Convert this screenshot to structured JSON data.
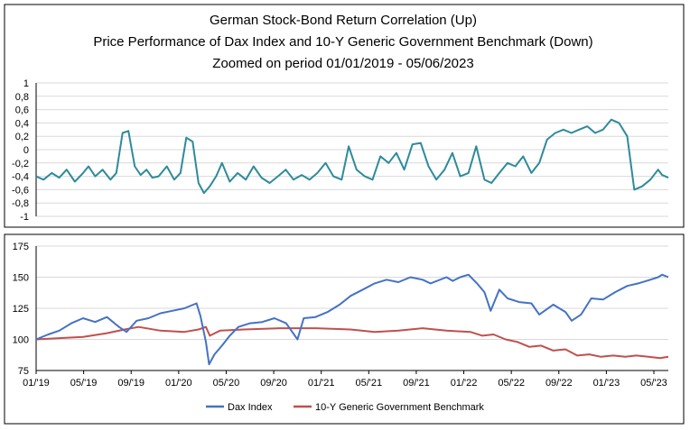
{
  "chart_data": [
    {
      "type": "line",
      "panel": "top",
      "title": [
        "German Stock-Bond Return Correlation (Up)",
        "Price Performance of Dax Index and 10-Y Generic Government Benchmark (Down)",
        "Zoomed on period 01/01/2019 - 05/06/2023"
      ],
      "xlabel": "",
      "ylabel": "",
      "ylim": [
        -1,
        1
      ],
      "yticks": [
        "1",
        "0,8",
        "0,6",
        "0,4",
        "0,2",
        "0",
        "-0,2",
        "-0,4",
        "-0,6",
        "-0,8",
        "-1"
      ],
      "grid": true,
      "series": [
        {
          "color": "#2e8b9a",
          "x": [
            "2019-01-01",
            "2019-01-20",
            "2019-02-10",
            "2019-03-01",
            "2019-03-20",
            "2019-04-10",
            "2019-05-01",
            "2019-05-15",
            "2019-06-01",
            "2019-06-20",
            "2019-07-10",
            "2019-07-25",
            "2019-08-10",
            "2019-08-25",
            "2019-09-10",
            "2019-09-25",
            "2019-10-10",
            "2019-10-25",
            "2019-11-10",
            "2019-12-01",
            "2019-12-20",
            "2020-01-05",
            "2020-01-20",
            "2020-02-05",
            "2020-02-20",
            "2020-03-05",
            "2020-03-20",
            "2020-04-05",
            "2020-04-20",
            "2020-05-10",
            "2020-05-30",
            "2020-06-20",
            "2020-07-10",
            "2020-07-30",
            "2020-08-20",
            "2020-09-10",
            "2020-09-30",
            "2020-10-20",
            "2020-11-10",
            "2020-11-30",
            "2020-12-20",
            "2021-01-10",
            "2021-01-30",
            "2021-02-20",
            "2021-03-10",
            "2021-03-30",
            "2021-04-20",
            "2021-05-10",
            "2021-05-30",
            "2021-06-20",
            "2021-07-10",
            "2021-07-30",
            "2021-08-20",
            "2021-09-10",
            "2021-09-30",
            "2021-10-20",
            "2021-11-10",
            "2021-11-30",
            "2021-12-20",
            "2022-01-10",
            "2022-01-30",
            "2022-02-20",
            "2022-03-10",
            "2022-03-30",
            "2022-04-20",
            "2022-05-10",
            "2022-05-30",
            "2022-06-20",
            "2022-07-10",
            "2022-07-30",
            "2022-08-20",
            "2022-09-10",
            "2022-09-30",
            "2022-10-20",
            "2022-11-10",
            "2022-11-30",
            "2022-12-20",
            "2023-01-10",
            "2023-01-30",
            "2023-02-20",
            "2023-03-10",
            "2023-03-30",
            "2023-04-20",
            "2023-05-10",
            "2023-05-20",
            "2023-06-05"
          ],
          "y": [
            -0.4,
            -0.45,
            -0.35,
            -0.42,
            -0.3,
            -0.48,
            -0.35,
            -0.25,
            -0.4,
            -0.3,
            -0.45,
            -0.35,
            0.25,
            0.28,
            -0.25,
            -0.38,
            -0.3,
            -0.42,
            -0.4,
            -0.25,
            -0.45,
            -0.35,
            0.18,
            0.12,
            -0.5,
            -0.65,
            -0.55,
            -0.4,
            -0.2,
            -0.48,
            -0.35,
            -0.45,
            -0.25,
            -0.42,
            -0.5,
            -0.4,
            -0.3,
            -0.45,
            -0.38,
            -0.45,
            -0.35,
            -0.2,
            -0.4,
            -0.45,
            0.05,
            -0.3,
            -0.4,
            -0.45,
            -0.1,
            -0.2,
            -0.05,
            -0.3,
            0.08,
            0.1,
            -0.25,
            -0.45,
            -0.3,
            -0.05,
            -0.4,
            -0.35,
            0.05,
            -0.45,
            -0.5,
            -0.35,
            -0.2,
            -0.25,
            -0.1,
            -0.35,
            -0.2,
            0.15,
            0.25,
            0.3,
            0.25,
            0.3,
            0.35,
            0.25,
            0.3,
            0.45,
            0.4,
            0.2,
            -0.6,
            -0.55,
            -0.45,
            -0.3,
            -0.38,
            -0.42
          ]
        }
      ]
    },
    {
      "type": "line",
      "panel": "bottom",
      "xlabel": "",
      "ylabel": "",
      "ylim": [
        75,
        175
      ],
      "yticks": [
        "75",
        "100",
        "125",
        "150",
        "175"
      ],
      "xticks": [
        "01/'19",
        "05/'19",
        "09/'19",
        "01/'20",
        "05/'20",
        "09/'20",
        "01/'21",
        "05/'21",
        "09/'21",
        "01/'22",
        "05/'22",
        "09/'22",
        "01/'23",
        "05/'23"
      ],
      "grid": true,
      "legend_position": "bottom",
      "series": [
        {
          "name": "Dax Index",
          "color": "#4472c4",
          "x": [
            "2019-01-01",
            "2019-02-01",
            "2019-03-01",
            "2019-04-01",
            "2019-05-01",
            "2019-06-01",
            "2019-07-01",
            "2019-08-01",
            "2019-08-20",
            "2019-09-15",
            "2019-10-15",
            "2019-11-15",
            "2019-12-15",
            "2020-01-15",
            "2020-02-15",
            "2020-02-25",
            "2020-03-10",
            "2020-03-18",
            "2020-04-01",
            "2020-04-20",
            "2020-05-10",
            "2020-06-01",
            "2020-07-01",
            "2020-08-01",
            "2020-09-01",
            "2020-10-01",
            "2020-10-30",
            "2020-11-15",
            "2020-12-15",
            "2021-01-15",
            "2021-02-15",
            "2021-03-15",
            "2021-04-15",
            "2021-05-15",
            "2021-06-15",
            "2021-07-15",
            "2021-08-15",
            "2021-09-15",
            "2021-10-05",
            "2021-11-15",
            "2021-12-01",
            "2021-12-20",
            "2022-01-10",
            "2022-02-01",
            "2022-02-20",
            "2022-03-08",
            "2022-03-30",
            "2022-04-20",
            "2022-05-20",
            "2022-06-20",
            "2022-07-10",
            "2022-08-15",
            "2022-09-15",
            "2022-10-01",
            "2022-10-25",
            "2022-11-20",
            "2022-12-20",
            "2023-01-20",
            "2023-02-20",
            "2023-03-20",
            "2023-04-20",
            "2023-05-10",
            "2023-05-20",
            "2023-06-05"
          ],
          "y": [
            100,
            104,
            107,
            113,
            117,
            114,
            118,
            110,
            106,
            115,
            117,
            121,
            123,
            125,
            129,
            119,
            98,
            80,
            88,
            95,
            103,
            110,
            113,
            114,
            117,
            113,
            100,
            117,
            118,
            122,
            128,
            135,
            140,
            145,
            148,
            146,
            150,
            148,
            145,
            150,
            147,
            150,
            152,
            145,
            138,
            123,
            140,
            133,
            130,
            129,
            120,
            128,
            122,
            115,
            120,
            133,
            132,
            138,
            143,
            145,
            148,
            150,
            152,
            150
          ]
        },
        {
          "name": "10-Y Generic Government Benchmark",
          "color": "#c0504d",
          "x": [
            "2019-01-01",
            "2019-03-01",
            "2019-05-01",
            "2019-07-01",
            "2019-08-15",
            "2019-09-20",
            "2019-11-15",
            "2020-01-15",
            "2020-02-20",
            "2020-03-10",
            "2020-03-20",
            "2020-04-15",
            "2020-06-15",
            "2020-09-15",
            "2020-12-15",
            "2021-03-15",
            "2021-05-15",
            "2021-07-15",
            "2021-09-15",
            "2021-11-15",
            "2022-01-15",
            "2022-02-15",
            "2022-03-15",
            "2022-04-15",
            "2022-05-15",
            "2022-06-15",
            "2022-07-15",
            "2022-08-15",
            "2022-09-15",
            "2022-10-15",
            "2022-11-15",
            "2022-12-15",
            "2023-01-15",
            "2023-02-15",
            "2023-03-15",
            "2023-04-15",
            "2023-05-15",
            "2023-06-05"
          ],
          "y": [
            100,
            101,
            102,
            105,
            108,
            110,
            107,
            106,
            108,
            110,
            103,
            107,
            108,
            109,
            109,
            108,
            106,
            107,
            109,
            107,
            106,
            103,
            104,
            100,
            98,
            94,
            95,
            91,
            92,
            87,
            88,
            86,
            87,
            86,
            87,
            86,
            85,
            86
          ]
        }
      ]
    }
  ]
}
